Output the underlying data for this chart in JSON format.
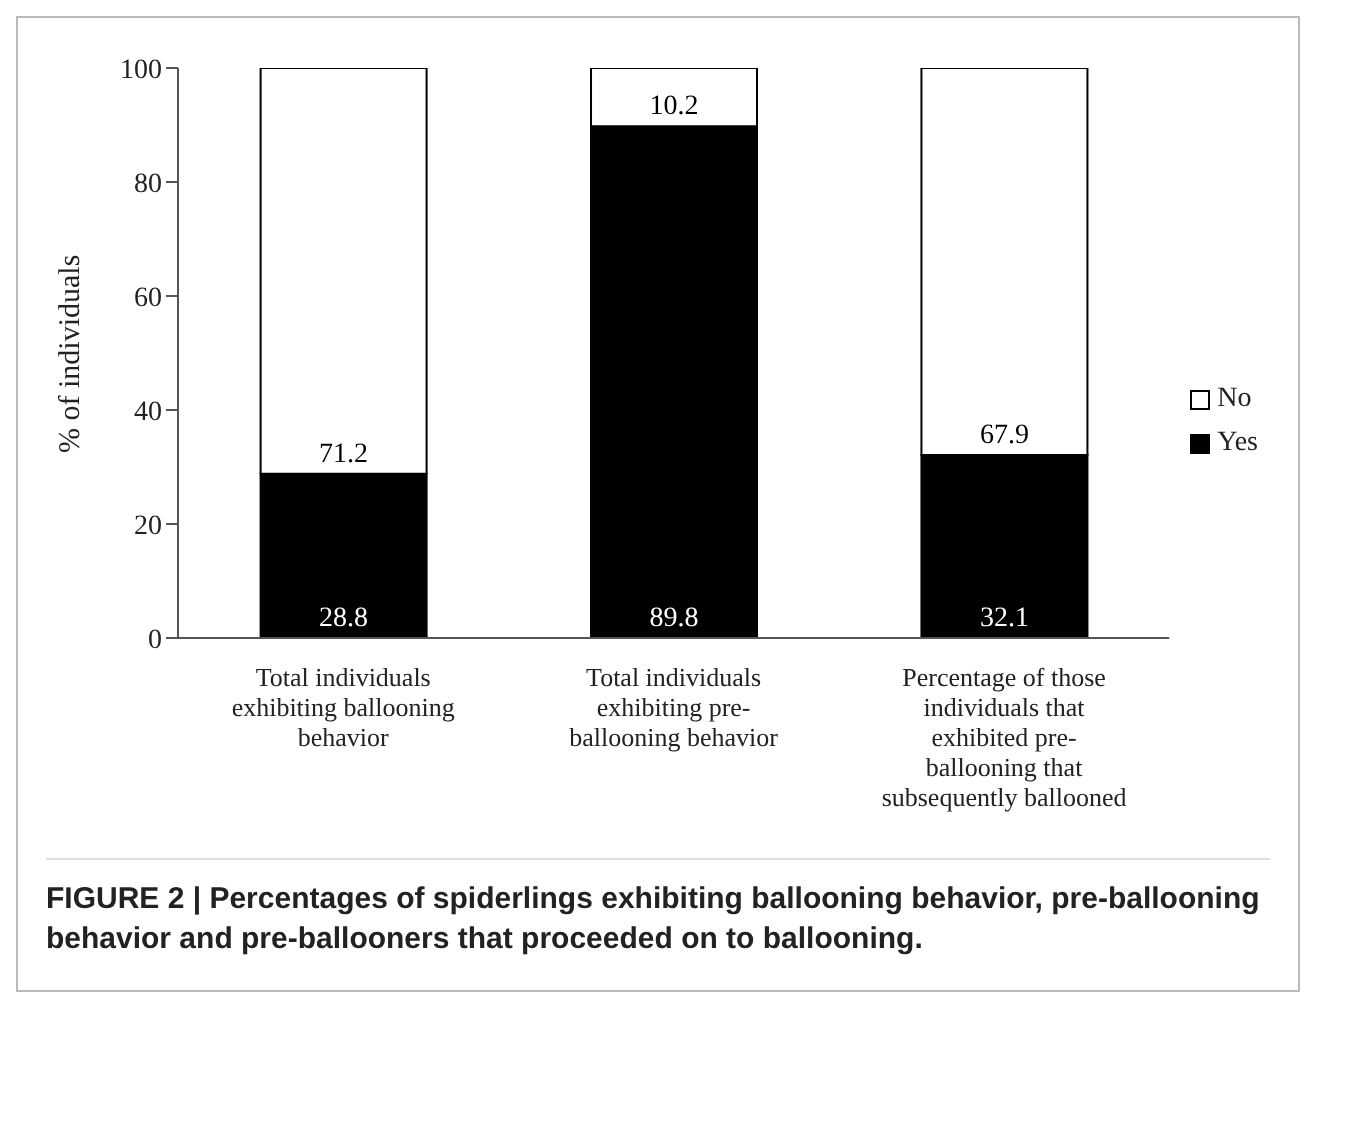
{
  "chart_data": {
    "type": "bar",
    "stacked": true,
    "ylabel": "% of individuals",
    "categories": [
      "Total individuals exhibiting ballooning behavior",
      "Total individuals exhibiting pre-ballooning behavior",
      "Percentage of those individuals that exhibited pre-ballooning that subsequently ballooned"
    ],
    "series": [
      {
        "name": "Yes",
        "color": "#000000",
        "values": [
          28.8,
          89.8,
          32.1
        ]
      },
      {
        "name": "No",
        "color": "#ffffff",
        "values": [
          71.2,
          10.2,
          67.9
        ]
      }
    ],
    "ylim": [
      0,
      100
    ],
    "yticks": [
      0,
      20,
      40,
      60,
      80,
      100
    ],
    "grid": false,
    "legend": "right",
    "data_labels": true,
    "annotations": [
      "FIGURE 2 | Percentages of spiderlings exhibiting ballooning behavior, pre-ballooning behavior and pre-ballooners that proceeded on to ballooning."
    ]
  }
}
